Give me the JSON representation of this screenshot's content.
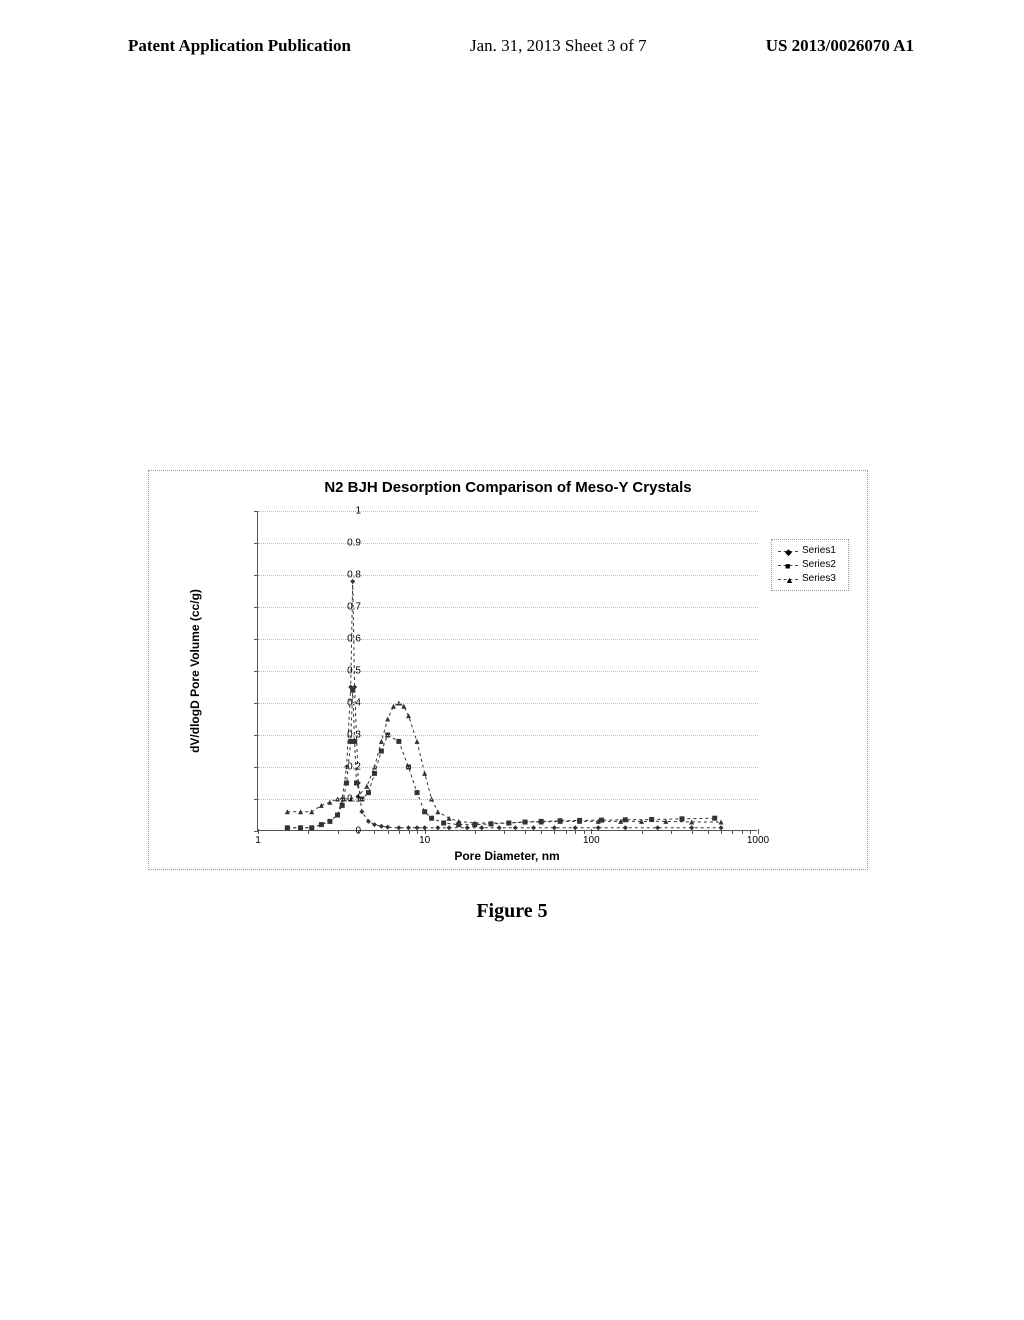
{
  "header": {
    "left": "Patent Application Publication",
    "mid": "Jan. 31, 2013  Sheet 3 of 7",
    "right": "US 2013/0026070 A1"
  },
  "figure_caption": "Figure 5",
  "chart": {
    "type": "line",
    "title": "N2 BJH Desorption Comparison of Meso-Y Crystals",
    "xlabel": "Pore Diameter, nm",
    "ylabel": "dV/dlogD Pore Volume (cc/g)",
    "xscale": "log",
    "xlim": [
      1,
      1000
    ],
    "ylim": [
      0,
      1
    ],
    "xticks": [
      1,
      10,
      100,
      1000
    ],
    "xtick_labels": [
      "1",
      "10",
      "100",
      "1000"
    ],
    "yticks": [
      0,
      0.1,
      0.2,
      0.3,
      0.4,
      0.5,
      0.6,
      0.7,
      0.8,
      0.9,
      1
    ],
    "ytick_labels": [
      "0",
      "0.1",
      "0.2",
      "0.3",
      "0.4",
      "0.5",
      "0.6",
      "0.7",
      "0.8",
      "0.9",
      "1"
    ],
    "grid_color": "#bbbbbb",
    "axis_color": "#555555",
    "background_color": "#ffffff",
    "title_fontsize": 15,
    "label_fontsize": 12,
    "tick_fontsize": 10,
    "line_color": "#333333",
    "line_style": "dashed",
    "line_width": 1,
    "marker_size": 5,
    "legend": {
      "position": "right",
      "items": [
        {
          "label": "Series1",
          "marker": "◆"
        },
        {
          "label": "Series2",
          "marker": "■"
        },
        {
          "label": "Series3",
          "marker": "▲"
        }
      ]
    },
    "series": [
      {
        "name": "Series1",
        "marker": "diamond",
        "x": [
          1.5,
          1.8,
          2.1,
          2.4,
          2.7,
          3.0,
          3.2,
          3.4,
          3.6,
          3.7,
          3.8,
          4.0,
          4.2,
          4.6,
          5.0,
          5.5,
          6.0,
          7.0,
          8.0,
          9.0,
          10,
          12,
          14,
          18,
          22,
          28,
          35,
          45,
          60,
          80,
          110,
          160,
          250,
          400,
          600
        ],
        "y": [
          0.01,
          0.01,
          0.01,
          0.02,
          0.03,
          0.05,
          0.1,
          0.2,
          0.45,
          0.78,
          0.45,
          0.15,
          0.06,
          0.03,
          0.02,
          0.015,
          0.012,
          0.01,
          0.01,
          0.01,
          0.01,
          0.01,
          0.01,
          0.01,
          0.01,
          0.01,
          0.01,
          0.01,
          0.01,
          0.01,
          0.01,
          0.01,
          0.01,
          0.01,
          0.01
        ]
      },
      {
        "name": "Series2",
        "marker": "square",
        "x": [
          1.5,
          1.8,
          2.1,
          2.4,
          2.7,
          3.0,
          3.2,
          3.4,
          3.6,
          3.7,
          3.8,
          3.9,
          4.2,
          4.6,
          5.0,
          5.5,
          6.0,
          7.0,
          8.0,
          9.0,
          10,
          11,
          13,
          16,
          20,
          25,
          32,
          40,
          50,
          65,
          85,
          115,
          160,
          230,
          350,
          550
        ],
        "y": [
          0.01,
          0.01,
          0.01,
          0.02,
          0.03,
          0.05,
          0.08,
          0.15,
          0.28,
          0.44,
          0.28,
          0.15,
          0.1,
          0.12,
          0.18,
          0.25,
          0.3,
          0.28,
          0.2,
          0.12,
          0.06,
          0.04,
          0.025,
          0.02,
          0.02,
          0.022,
          0.025,
          0.028,
          0.03,
          0.032,
          0.033,
          0.034,
          0.035,
          0.036,
          0.038,
          0.04
        ]
      },
      {
        "name": "Series3",
        "marker": "triangle",
        "x": [
          1.5,
          1.8,
          2.1,
          2.4,
          2.7,
          3.0,
          3.3,
          3.6,
          4.0,
          4.5,
          5.0,
          5.5,
          6.0,
          6.5,
          7.0,
          7.5,
          8.0,
          9.0,
          10,
          11,
          12,
          14,
          16,
          20,
          25,
          32,
          40,
          50,
          65,
          85,
          110,
          150,
          200,
          280,
          400,
          600
        ],
        "y": [
          0.06,
          0.06,
          0.06,
          0.08,
          0.09,
          0.1,
          0.1,
          0.1,
          0.11,
          0.14,
          0.2,
          0.28,
          0.35,
          0.39,
          0.4,
          0.39,
          0.36,
          0.28,
          0.18,
          0.1,
          0.06,
          0.04,
          0.03,
          0.025,
          0.025,
          0.025,
          0.028,
          0.028,
          0.03,
          0.03,
          0.03,
          0.03,
          0.03,
          0.03,
          0.028,
          0.028
        ]
      }
    ]
  }
}
